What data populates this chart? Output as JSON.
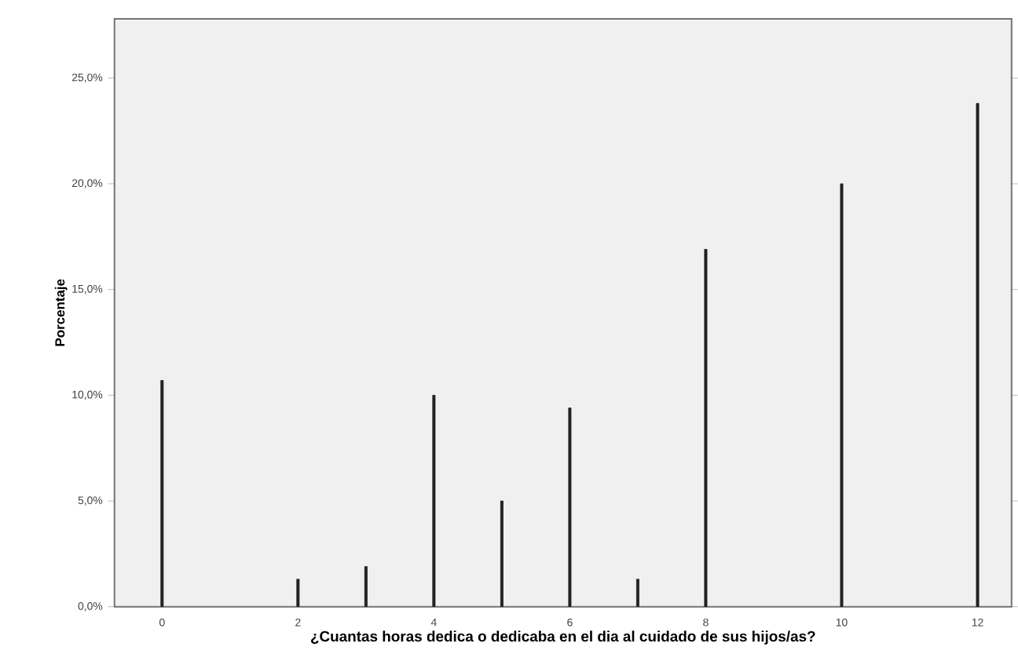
{
  "chart_data": {
    "type": "bar",
    "xlabel": "¿Cuantas horas dedica o dedicaba en el dia al cuidado de sus hijos/as?",
    "ylabel": "Porcentaje",
    "x": [
      0,
      2,
      3,
      4,
      5,
      6,
      7,
      8,
      10,
      12
    ],
    "values": [
      10.7,
      1.3,
      1.9,
      10.0,
      5.0,
      9.4,
      1.3,
      16.9,
      20.0,
      23.8
    ],
    "color": "#222222",
    "xlim": [
      -0.7,
      12.5
    ],
    "xticks": [
      0,
      2,
      4,
      6,
      8,
      10,
      12
    ],
    "ylim": [
      0,
      27.8
    ],
    "yticks": [
      {
        "value": 0,
        "label": "0,0%"
      },
      {
        "value": 5,
        "label": "5,0%"
      },
      {
        "value": 10,
        "label": "10,0%"
      },
      {
        "value": 15,
        "label": "15,0%"
      },
      {
        "value": 20,
        "label": "20,0%"
      },
      {
        "value": 25,
        "label": "25,0%"
      }
    ],
    "grid": false
  }
}
